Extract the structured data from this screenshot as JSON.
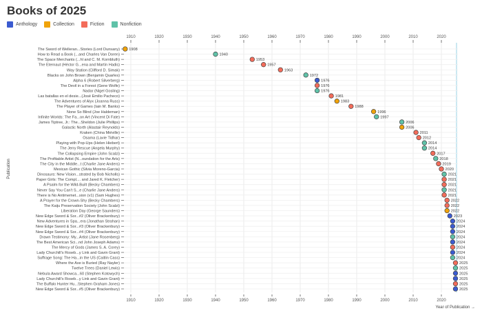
{
  "chart_data": {
    "type": "scatter",
    "title": "Books of 2025",
    "xlabel": "Year of Publication →",
    "ylabel": "Publication",
    "xlim": [
      1906,
      2026
    ],
    "xticks": [
      1910,
      1920,
      1930,
      1940,
      1950,
      1960,
      1970,
      1980,
      1990,
      2000,
      2010,
      2020
    ],
    "grid": true,
    "legend_position": "top-left",
    "categories": [
      {
        "name": "Anthology",
        "color": "#3b5bd0"
      },
      {
        "name": "Collection",
        "color": "#f0a30a"
      },
      {
        "name": "Fiction",
        "color": "#f36c5a"
      },
      {
        "name": "Nonfiction",
        "color": "#5fc2a8"
      }
    ],
    "points": [
      {
        "label": "The Sword of Welleran...Stories (Lord Dunsany)",
        "year": 1908,
        "category": "Collection"
      },
      {
        "label": "How to Read a Book (...and Charles Van Doren)",
        "year": 1940,
        "category": "Nonfiction"
      },
      {
        "label": "The Space Merchants (...hl and C. M. Kornbluth)",
        "year": 1953,
        "category": "Fiction"
      },
      {
        "label": "The Eternaut (Héctor G...ena and Martín Hadis)",
        "year": 1957,
        "category": "Fiction"
      },
      {
        "label": "Way Station (Clifford D. Simak)",
        "year": 1963,
        "category": "Fiction"
      },
      {
        "label": "Blacks on John Brown (Benjamin Quarles)",
        "year": 1972,
        "category": "Nonfiction"
      },
      {
        "label": "Alpha 6 (Robert Silverberg)",
        "year": 1976,
        "category": "Anthology"
      },
      {
        "label": "The Devil in a Forest (Gene Wolfe)",
        "year": 1976,
        "category": "Fiction"
      },
      {
        "label": "Nadar (Nigel Gosling)",
        "year": 1976,
        "category": "Nonfiction"
      },
      {
        "label": "Las batallas en el desie...(José Emilio Pacheco)",
        "year": 1981,
        "category": "Fiction"
      },
      {
        "label": "The Adventures of Alyx (Joanna Russ)",
        "year": 1983,
        "category": "Collection"
      },
      {
        "label": "The Player of Games (Iain M. Banks)",
        "year": 1988,
        "category": "Fiction"
      },
      {
        "label": "None So Blind (Joe Haldeman)",
        "year": 1996,
        "category": "Collection"
      },
      {
        "label": "Infinite Worlds: The Fa...on Art (Vincent Di Fate)",
        "year": 1997,
        "category": "Nonfiction"
      },
      {
        "label": "James Tiptree, Jr.: The...Sheldon (Julie Phillips)",
        "year": 2006,
        "category": "Nonfiction"
      },
      {
        "label": "Galactic North (Alastair Reynolds)",
        "year": 2006,
        "category": "Collection"
      },
      {
        "label": "Kraken (China Miéville)",
        "year": 2011,
        "category": "Fiction"
      },
      {
        "label": "Osama (Lavie Tidhar)",
        "year": 2012,
        "category": "Fiction"
      },
      {
        "label": "Playing with Pop-Ups (Helen Hiebert)",
        "year": 2014,
        "category": "Nonfiction"
      },
      {
        "label": "The Jerry Rescue (Angela Murphy)",
        "year": 2014,
        "category": "Nonfiction"
      },
      {
        "label": "The Collapsing Empire (John Scalzi)",
        "year": 2017,
        "category": "Fiction"
      },
      {
        "label": "The Profitable Artist (N...oundation for the Arts)",
        "year": 2018,
        "category": "Nonfiction"
      },
      {
        "label": "The City in the Middle...t (Charlie Jane Anders)",
        "year": 2019,
        "category": "Fiction"
      },
      {
        "label": "Mexican Gothic (Silvia Moreno-Garcia)",
        "year": 2020,
        "category": "Fiction"
      },
      {
        "label": "Dinosaurs: New Vision...strated by Bob Nicholls)",
        "year": 2021,
        "category": "Nonfiction"
      },
      {
        "label": "Paper Girls: The Compl.... and Jared K. Fletcher)",
        "year": 2021,
        "category": "Fiction"
      },
      {
        "label": "A Psalm for the Wild-Built (Becky Chambers)",
        "year": 2021,
        "category": "Fiction"
      },
      {
        "label": "Never Say You Can't S...e (Charlie Jane Anders)",
        "year": 2021,
        "category": "Nonfiction"
      },
      {
        "label": "There is No Antimemet...sion (v1) (Sam Hughes)",
        "year": 2021,
        "category": "Fiction"
      },
      {
        "label": "A Prayer for the Crown-Shy (Becky Chambers)",
        "year": 2022,
        "category": "Fiction"
      },
      {
        "label": "The Kaiju Preservation Society (John Scalzi)",
        "year": 2022,
        "category": "Fiction"
      },
      {
        "label": "Liberation Day (George Saunders)",
        "year": 2022,
        "category": "Collection"
      },
      {
        "label": "New Edge Sword & Sor...#2 (Oliver Brackenbury)",
        "year": 2023,
        "category": "Anthology"
      },
      {
        "label": "New Adventures in Spa...era (Jonathan Strahan)",
        "year": 2024,
        "category": "Anthology"
      },
      {
        "label": "New Edge Sword & Sor...#3 (Oliver Brackenbury)",
        "year": 2024,
        "category": "Anthology"
      },
      {
        "label": "New Edge Sword & Sor...#4 (Oliver Brackenbury)",
        "year": 2024,
        "category": "Anthology"
      },
      {
        "label": "Drawn Testimony: My...Artist (Jane Rosenberg)",
        "year": 2024,
        "category": "Nonfiction"
      },
      {
        "label": "The Best American Sci...nd John Joseph Adams)",
        "year": 2024,
        "category": "Anthology"
      },
      {
        "label": "The Mercy of Gods (James S. A. Corey)",
        "year": 2024,
        "category": "Fiction"
      },
      {
        "label": "Lady Churchill's Roseb...y Link and Gavin Grant)",
        "year": 2024,
        "category": "Anthology"
      },
      {
        "label": "Suffrage Song: The Ha...in the US (Caitlin Cass)",
        "year": 2024,
        "category": "Nonfiction"
      },
      {
        "label": "Where the Axe is Buried (Ray Nayler)",
        "year": 2025,
        "category": "Fiction"
      },
      {
        "label": "Twelve Trees (Daniel Lewis)",
        "year": 2025,
        "category": "Nonfiction"
      },
      {
        "label": "Nebula Award Showca...60 (Stephen Kotowych)",
        "year": 2025,
        "category": "Anthology"
      },
      {
        "label": "Lady Churchill's Roseb...y Link and Gavin Grant)",
        "year": 2025,
        "category": "Anthology"
      },
      {
        "label": "The Buffalo Hunter Hu...Stephen Graham Jones)",
        "year": 2025,
        "category": "Fiction"
      },
      {
        "label": "New Edge Sword & Sor...#5 (Oliver Brackenbury)",
        "year": 2025,
        "category": "Anthology"
      }
    ]
  }
}
